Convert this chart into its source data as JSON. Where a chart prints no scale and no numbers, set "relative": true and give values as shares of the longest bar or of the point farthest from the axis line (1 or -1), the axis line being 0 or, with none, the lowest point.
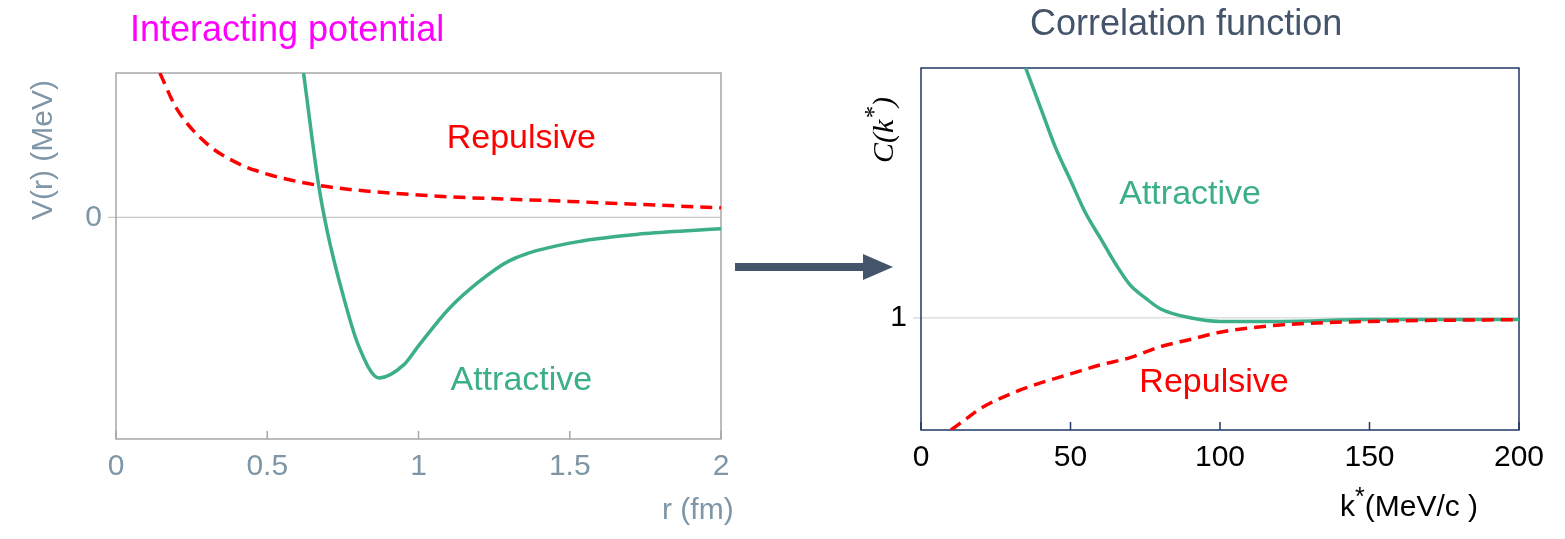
{
  "chart_data": [
    {
      "type": "line",
      "title": "Interacting potential",
      "ylabel": "V(r) (MeV)",
      "xlabel": "r (fm)",
      "relative": true,
      "xlim": [
        0,
        2
      ],
      "xticks": [
        0,
        0.5,
        1,
        1.5,
        2
      ],
      "grid": false,
      "legend": false,
      "ref_lines": [
        {
          "axis": "y",
          "value": 0,
          "label": "0",
          "color": "#c8c8c8"
        }
      ],
      "series": [
        {
          "name": "Repulsive",
          "color": "#ff0000",
          "line_style": "dashed",
          "x": [
            0.145,
            0.2,
            0.3,
            0.4,
            0.5,
            0.67,
            1.0,
            1.5,
            2.0
          ],
          "values": [
            0.9,
            0.68,
            0.46,
            0.34,
            0.27,
            0.2,
            0.14,
            0.1,
            0.06
          ]
        },
        {
          "name": "Attractive",
          "color": "#3caf8a",
          "line_style": "solid",
          "x": [
            0.62,
            0.67,
            0.7,
            0.75,
            0.8,
            0.87,
            0.95,
            1.0,
            1.1,
            1.2,
            1.3,
            1.5,
            1.75,
            2.0
          ],
          "values": [
            0.9,
            0.2,
            -0.1,
            -0.48,
            -0.79,
            -1,
            -0.92,
            -0.8,
            -0.57,
            -0.4,
            -0.27,
            -0.16,
            -0.1,
            -0.07
          ]
        }
      ]
    },
    {
      "type": "line",
      "title": "Correlation function",
      "ylabel": "C(k$^{*}$)",
      "xlabel": "k$^{*}$(MeV/c )",
      "relative": true,
      "xlim": [
        0,
        200
      ],
      "xticks": [
        0,
        50,
        100,
        150,
        200
      ],
      "grid": false,
      "legend": false,
      "ref_lines": [
        {
          "axis": "y",
          "value": 0.31,
          "color": "#d9d9d9"
        }
      ],
      "annotations": [
        "1"
      ],
      "series": [
        {
          "name": "Repulsive",
          "color": "#ff0000",
          "line_style": "dashed",
          "x": [
            10,
            15,
            20,
            30,
            40,
            50,
            60,
            70,
            80,
            90,
            100,
            120,
            150,
            200
          ],
          "values": [
            0,
            0.03,
            0.06,
            0.1,
            0.13,
            0.155,
            0.18,
            0.2,
            0.23,
            0.25,
            0.27,
            0.29,
            0.3,
            0.305
          ]
        },
        {
          "name": "Attractive",
          "color": "#3caf8a",
          "line_style": "solid",
          "x": [
            35,
            40,
            45,
            50,
            55,
            60,
            65,
            70,
            75,
            80,
            90,
            100,
            120,
            150,
            200
          ],
          "values": [
            1,
            0.89,
            0.78,
            0.69,
            0.6,
            0.53,
            0.46,
            0.4,
            0.365,
            0.335,
            0.31,
            0.3,
            0.3,
            0.305,
            0.305
          ]
        }
      ]
    }
  ]
}
